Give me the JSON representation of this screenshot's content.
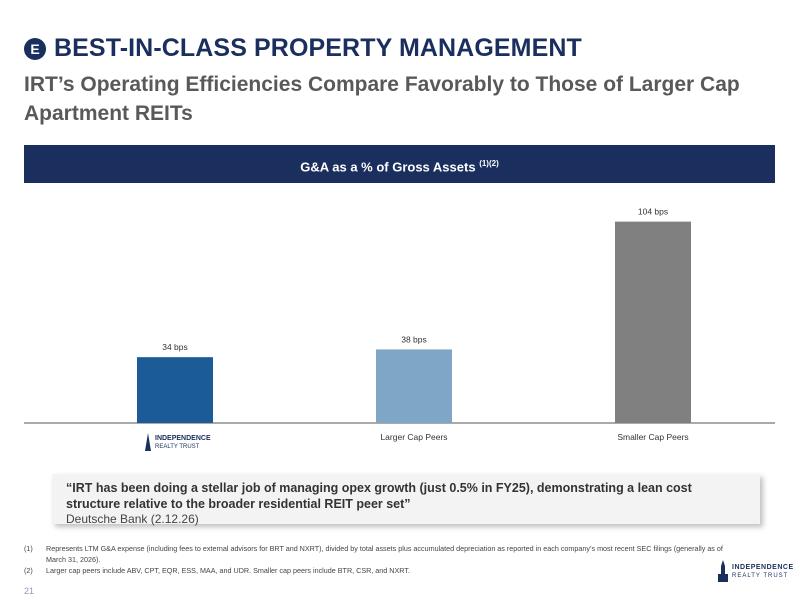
{
  "header": {
    "badge": "E",
    "title": "BEST-IN-CLASS PROPERTY MANAGEMENT",
    "subtitle": "IRT’s Operating Efficiencies Compare Favorably to Those of Larger Cap Apartment REITs"
  },
  "chart_header": {
    "label": "G&A as a % of Gross Assets",
    "superscript": "(1)(2)"
  },
  "chart_data": {
    "type": "bar",
    "categories": [
      "INDEPENDENCE REALTY TRUST",
      "Larger Cap Peers",
      "Smaller Cap Peers"
    ],
    "values": [
      34,
      38,
      104
    ],
    "unit": "bps",
    "data_labels": [
      "34 bps",
      "38 bps",
      "104 bps"
    ],
    "colors": [
      "#1c5c96",
      "#7fa6c6",
      "#808080"
    ],
    "ylim": [
      0,
      110
    ],
    "grid": false
  },
  "logo": {
    "line1": "INDEPENDENCE",
    "line2": "REALTY TRUST"
  },
  "quote": {
    "text": "“IRT has been doing a stellar job of managing opex growth (just 0.5% in FY25), demonstrating a lean cost structure relative to the broader residential REIT peer set”",
    "source": "Deutsche Bank (2.12.26)"
  },
  "footnotes": [
    {
      "num": "(1)",
      "text": "Represents LTM G&A expense (including fees to external advisors for BRT and NXRT), divided by total assets plus accumulated depreciation as reported in each company’s most recent SEC filings (generally as of March 31, 2026)."
    },
    {
      "num": "(2)",
      "text": "Larger cap peers include ABV, CPT, EQR, ESS, MAA, and UDR. Smaller cap peers include BTR, CSR, and NXRT."
    }
  ],
  "page_number": "21"
}
